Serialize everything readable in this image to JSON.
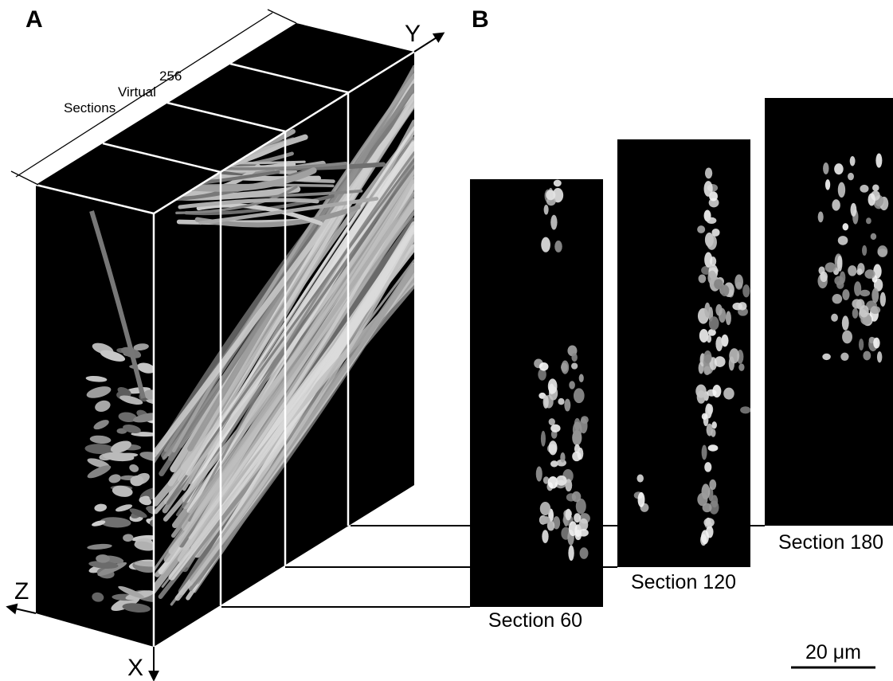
{
  "panels": {
    "a": {
      "label": "A",
      "axes": {
        "x": "X",
        "y": "Y",
        "z": "Z"
      },
      "dimension": {
        "count": 256,
        "text": [
          "Virtual",
          "Sections"
        ]
      }
    },
    "b": {
      "label": "B",
      "sections": [
        "Section 60",
        "Section 120",
        "Section 180"
      ],
      "scale_bar": "20 μm"
    }
  }
}
